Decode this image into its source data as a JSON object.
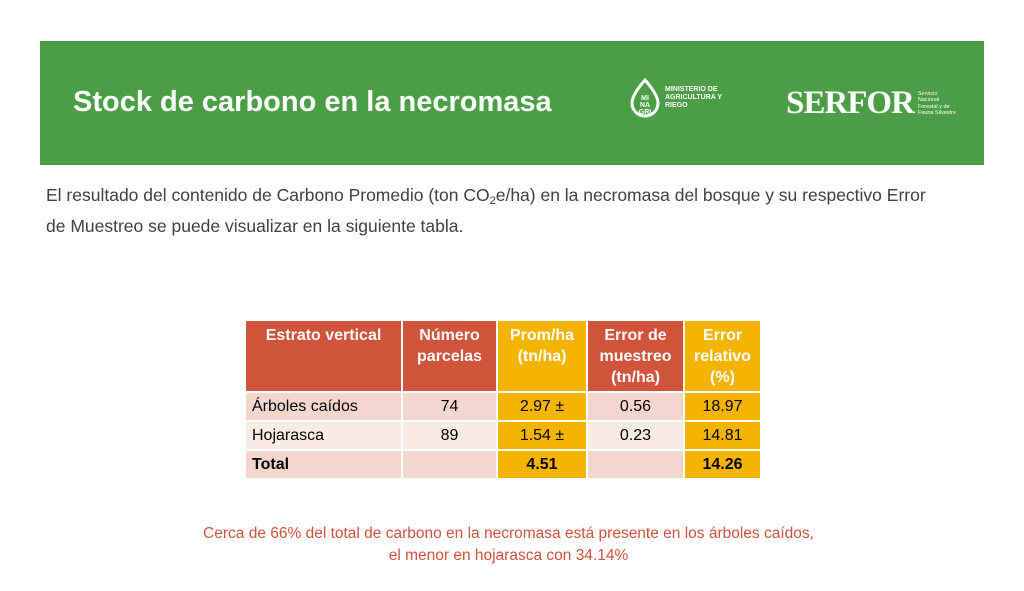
{
  "header": {
    "title": "Stock de carbono en la necromasa",
    "minagri_logo_letters": "MI NA GRI",
    "minagri_text": "MINISTERIO DE AGRICULTURA Y RIEGO",
    "serfor_logo": "SERFOR",
    "serfor_text": "Servicio Nacional Forestal y de Fauna Silvestre"
  },
  "intro": {
    "part1": "El resultado del contenido de Carbono Promedio (ton CO",
    "sub": "2",
    "part2": "e/ha) en la necromasa  del bosque y su respectivo Error de Muestreo se puede visualizar en la siguiente tabla."
  },
  "table": {
    "headers": [
      "Estrato vertical",
      "Número parcelas",
      "Prom/ha (tn/ha)",
      "Error de muestreo (tn/ha)",
      "Error relativo (%)"
    ],
    "rows": [
      [
        "Árboles caídos",
        "74",
        "2.97 ±",
        "0.56",
        "18.97"
      ],
      [
        "Hojarasca",
        "89",
        "1.54 ±",
        "0.23",
        "14.81"
      ],
      [
        "Total",
        "",
        "4.51",
        "",
        "14.26"
      ]
    ]
  },
  "note": "Cerca de 66% del total de carbono en la necromasa está presente en los árboles caídos, el menor en hojarasca con 34.14%",
  "colors": {
    "banner": "#4b9e46",
    "header_red": "#d0533c",
    "header_gold": "#f5b400",
    "note_red": "#d0533c"
  }
}
